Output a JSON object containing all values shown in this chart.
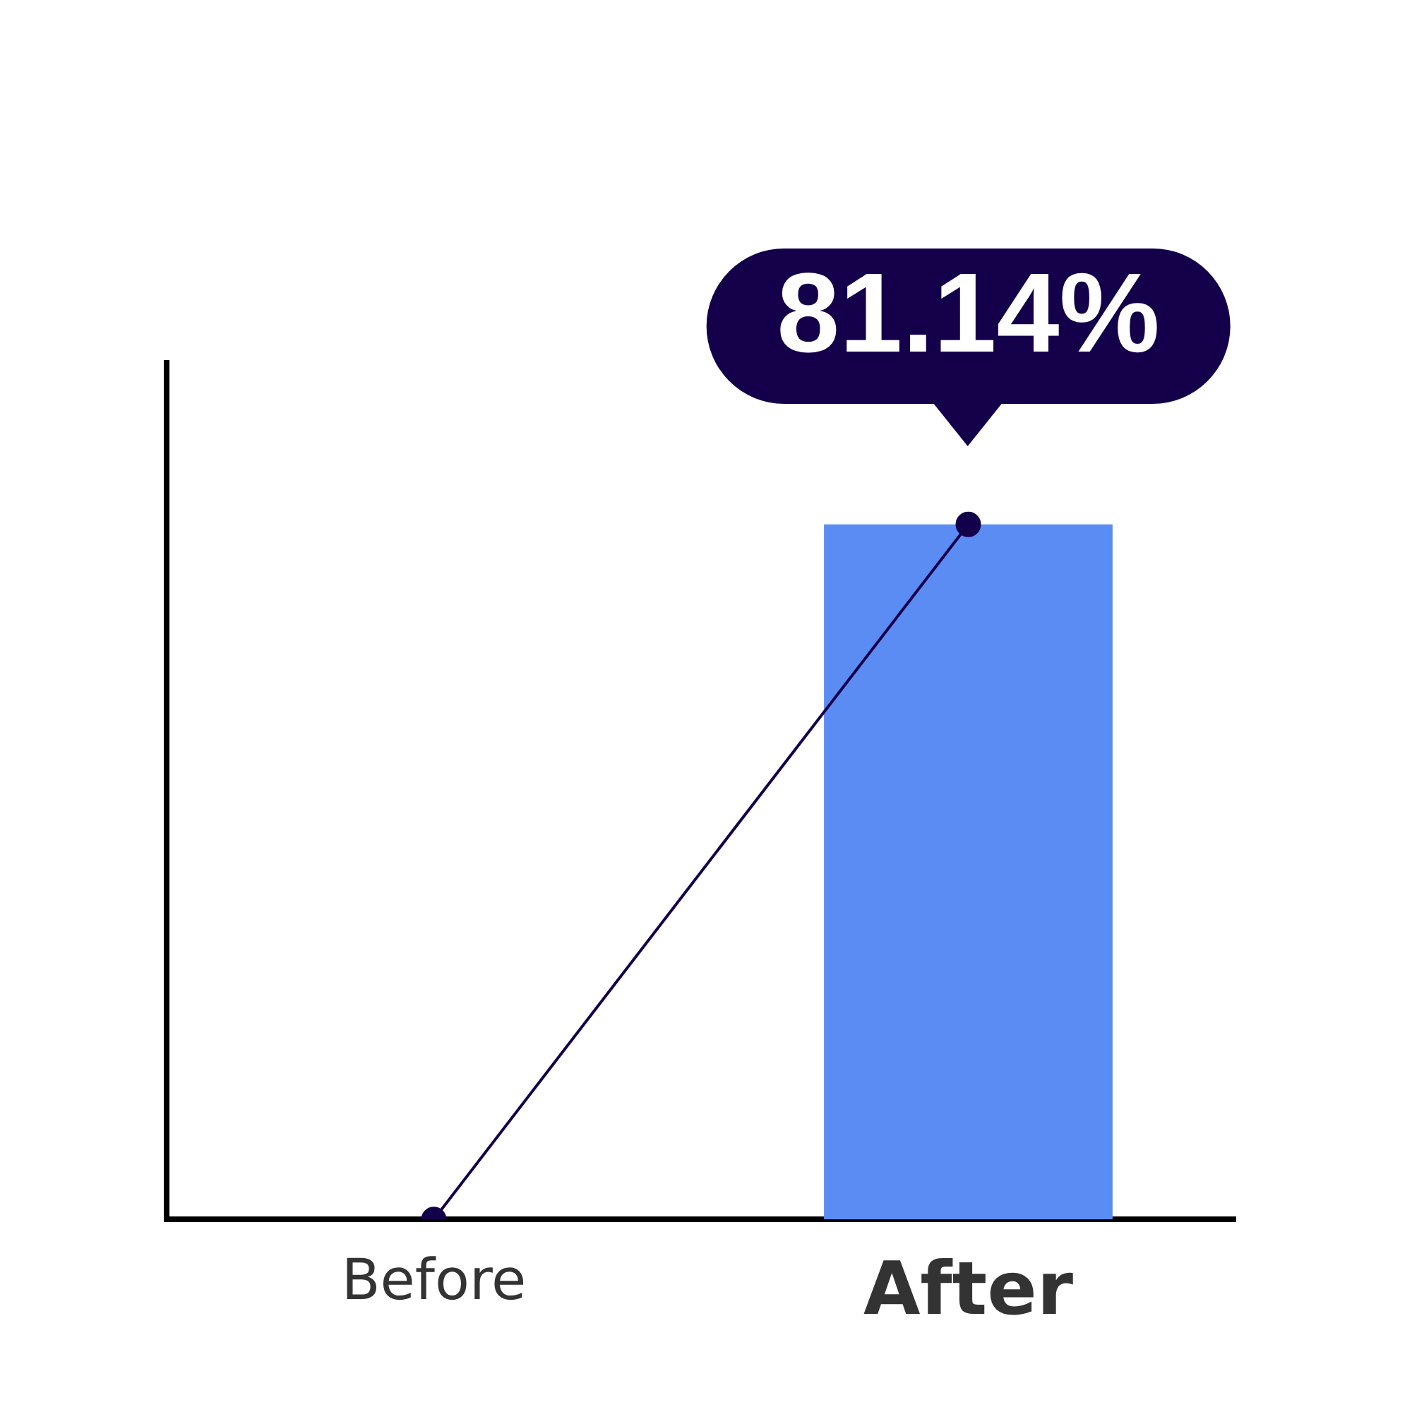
{
  "chart_data": {
    "type": "bar",
    "categories": [
      "Before",
      "After"
    ],
    "series": [
      {
        "color": "#5b8cf4",
        "values": [
          0,
          81.14
        ],
        "value_labels": [
          null,
          "81.14%"
        ]
      },
      {
        "type": "line",
        "color": "#14004a",
        "values": [
          0,
          81.14
        ]
      }
    ],
    "ylim": [
      0,
      100
    ],
    "grid": false,
    "legend": false,
    "tick_labels": "x",
    "marker": "circle",
    "line_style": "solid"
  }
}
